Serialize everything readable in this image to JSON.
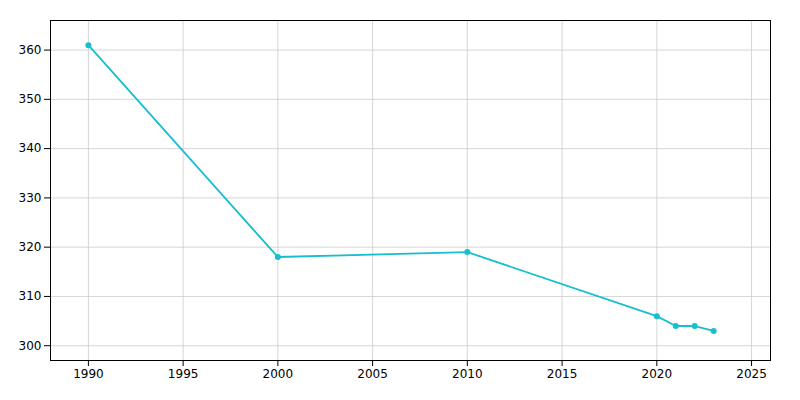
{
  "chart_data": {
    "type": "line",
    "x": [
      1990,
      2000,
      2010,
      2020,
      2021,
      2022,
      2023
    ],
    "values": [
      361,
      318,
      319,
      306,
      304,
      304,
      303
    ],
    "color": "#17BECF",
    "marker": "circle",
    "xlim": [
      1988,
      2026
    ],
    "ylim": [
      297,
      366
    ],
    "xticks": [
      1990,
      1995,
      2000,
      2005,
      2010,
      2015,
      2020,
      2025
    ],
    "yticks": [
      300,
      310,
      320,
      330,
      340,
      350,
      360
    ],
    "grid": true
  }
}
